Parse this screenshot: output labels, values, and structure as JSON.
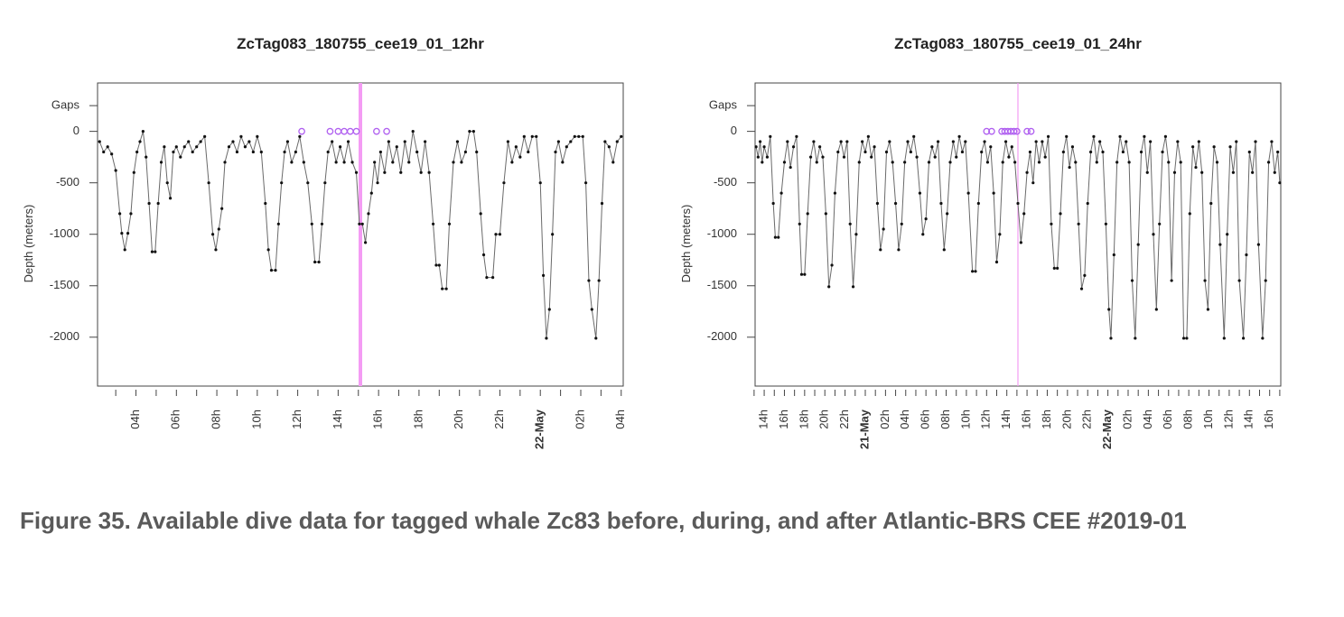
{
  "chart_data": [
    {
      "type": "line",
      "title": "ZcTag083_180755_cee19_01_12hr",
      "ylabel": "Depth (meters)",
      "xlim": [
        26.1,
        52.1
      ],
      "ylim": [
        -2475,
        470
      ],
      "yticks": [
        {
          "value": 250,
          "label": "Gaps"
        },
        0,
        -500,
        -1000,
        -1500,
        -2000
      ],
      "xticks": [
        {
          "value": 28,
          "label": "04h"
        },
        {
          "value": 30,
          "label": "06h"
        },
        {
          "value": 32,
          "label": "08h"
        },
        {
          "value": 34,
          "label": "10h"
        },
        {
          "value": 36,
          "label": "12h"
        },
        {
          "value": 38,
          "label": "14h"
        },
        {
          "value": 40,
          "label": "16h"
        },
        {
          "value": 42,
          "label": "18h"
        },
        {
          "value": 44,
          "label": "20h"
        },
        {
          "value": 46,
          "label": "22h"
        },
        {
          "value": 48,
          "label": "22-May"
        },
        {
          "value": 50,
          "label": "02h"
        },
        {
          "value": 52,
          "label": "04h"
        }
      ],
      "xminorticks": [
        27,
        29,
        31,
        33,
        35,
        37,
        39,
        41,
        43,
        45,
        47,
        49,
        51
      ],
      "vline": {
        "x": 39.1,
        "color": "#f49cf4"
      },
      "series": [
        {
          "color": "#111111",
          "line_color": "#6a6a6a",
          "x": [
            26.2,
            26.4,
            26.6,
            26.8,
            27.0,
            27.2,
            27.3,
            27.45,
            27.6,
            27.75,
            27.9,
            28.05,
            28.2,
            28.35,
            28.5,
            28.65,
            28.8,
            28.95,
            29.1,
            29.25,
            29.4,
            29.55,
            29.7,
            29.85,
            30.0,
            30.2,
            30.4,
            30.6,
            30.8,
            31.0,
            31.2,
            31.4,
            31.6,
            31.8,
            31.95,
            32.1,
            32.25,
            32.4,
            32.6,
            32.8,
            33.0,
            33.2,
            33.4,
            33.6,
            33.8,
            34.0,
            34.2,
            34.4,
            34.55,
            34.7,
            34.9,
            35.05,
            35.2,
            35.35,
            35.5,
            35.7,
            35.9,
            36.1,
            36.3,
            36.5,
            36.7,
            36.85,
            37.05,
            37.2,
            37.35,
            37.5,
            37.7,
            37.9,
            38.1,
            38.3,
            38.5,
            38.7,
            38.9,
            39.05,
            39.2,
            39.35,
            39.5,
            39.65,
            39.8,
            39.95,
            40.1,
            40.3,
            40.5,
            40.7,
            40.9,
            41.1,
            41.3,
            41.5,
            41.7,
            41.9,
            42.1,
            42.3,
            42.5,
            42.7,
            42.85,
            43.0,
            43.15,
            43.35,
            43.5,
            43.7,
            43.9,
            44.1,
            44.3,
            44.5,
            44.7,
            44.85,
            45.05,
            45.2,
            45.35,
            45.65,
            45.8,
            46.0,
            46.2,
            46.4,
            46.6,
            46.8,
            47.0,
            47.2,
            47.4,
            47.6,
            47.8,
            48.0,
            48.15,
            48.3,
            48.45,
            48.6,
            48.75,
            48.9,
            49.1,
            49.3,
            49.5,
            49.7,
            49.9,
            50.1,
            50.25,
            50.4,
            50.55,
            50.75,
            50.9,
            51.05,
            51.2,
            51.4,
            51.6,
            51.8,
            52.0
          ],
          "values": [
            -100,
            -200,
            -150,
            -220,
            -380,
            -800,
            -990,
            -1150,
            -990,
            -800,
            -400,
            -200,
            -100,
            0,
            -250,
            -700,
            -1170,
            -1170,
            -700,
            -300,
            -150,
            -500,
            -650,
            -200,
            -150,
            -250,
            -150,
            -100,
            -200,
            -150,
            -100,
            -50,
            -500,
            -1000,
            -1150,
            -950,
            -750,
            -300,
            -150,
            -100,
            -200,
            -50,
            -150,
            -100,
            -200,
            -50,
            -200,
            -700,
            -1150,
            -1350,
            -1350,
            -900,
            -500,
            -200,
            -100,
            -300,
            -200,
            -50,
            -300,
            -500,
            -900,
            -1270,
            -1270,
            -900,
            -500,
            -200,
            -100,
            -300,
            -150,
            -300,
            -100,
            -300,
            -400,
            -900,
            -900,
            -1080,
            -800,
            -600,
            -300,
            -500,
            -200,
            -400,
            -100,
            -300,
            -150,
            -400,
            -100,
            -300,
            0,
            -200,
            -400,
            -100,
            -400,
            -900,
            -1300,
            -1300,
            -1530,
            -1530,
            -900,
            -300,
            -100,
            -300,
            -200,
            0,
            0,
            -200,
            -800,
            -1200,
            -1420,
            -1420,
            -1000,
            -1000,
            -500,
            -100,
            -300,
            -150,
            -250,
            -50,
            -200,
            -50,
            -50,
            -500,
            -1400,
            -2010,
            -1730,
            -1000,
            -200,
            -100,
            -300,
            -150,
            -100,
            -50,
            -50,
            -50,
            -500,
            -1450,
            -1730,
            -2010,
            -1450,
            -700,
            -100,
            -150,
            -300,
            -100,
            -50
          ]
        },
        {
          "color": "#b060f0",
          "marker": "open",
          "x": [
            36.2,
            37.6,
            38.0,
            38.3,
            38.6,
            38.9,
            39.9,
            40.4
          ],
          "values": [
            0,
            0,
            0,
            0,
            0,
            0,
            0,
            0
          ]
        }
      ]
    },
    {
      "type": "line",
      "title": "ZcTag083_180755_cee19_01_24hr",
      "ylabel": "Depth (meters)",
      "xlim": [
        13.1,
        65.1
      ],
      "ylim": [
        -2475,
        470
      ],
      "yticks": [
        {
          "value": 250,
          "label": "Gaps"
        },
        0,
        -500,
        -1000,
        -1500,
        -2000
      ],
      "xticks": [
        {
          "value": 14,
          "label": "14h"
        },
        {
          "value": 16,
          "label": "16h"
        },
        {
          "value": 18,
          "label": "18h"
        },
        {
          "value": 20,
          "label": "20h"
        },
        {
          "value": 22,
          "label": "22h"
        },
        {
          "value": 24,
          "label": "21-May"
        },
        {
          "value": 26,
          "label": "02h"
        },
        {
          "value": 28,
          "label": "04h"
        },
        {
          "value": 30,
          "label": "06h"
        },
        {
          "value": 32,
          "label": "08h"
        },
        {
          "value": 34,
          "label": "10h"
        },
        {
          "value": 36,
          "label": "12h"
        },
        {
          "value": 38,
          "label": "14h"
        },
        {
          "value": 40,
          "label": "16h"
        },
        {
          "value": 42,
          "label": "18h"
        },
        {
          "value": 44,
          "label": "20h"
        },
        {
          "value": 46,
          "label": "22h"
        },
        {
          "value": 48,
          "label": "22-May"
        },
        {
          "value": 50,
          "label": "02h"
        },
        {
          "value": 52,
          "label": "04h"
        },
        {
          "value": 54,
          "label": "06h"
        },
        {
          "value": 56,
          "label": "08h"
        },
        {
          "value": 58,
          "label": "10h"
        },
        {
          "value": 60,
          "label": "12h"
        },
        {
          "value": 62,
          "label": "14h"
        },
        {
          "value": 64,
          "label": "16h"
        }
      ],
      "xminorticks": [
        13,
        15,
        17,
        19,
        21,
        23,
        25,
        27,
        29,
        31,
        33,
        35,
        37,
        39,
        41,
        43,
        45,
        47,
        49,
        51,
        53,
        55,
        57,
        59,
        61,
        63,
        65
      ],
      "vline": {
        "x": 39.1,
        "color": "#f49cf4"
      },
      "series": [
        {
          "color": "#111111",
          "line_color": "#6a6a6a",
          "x": [
            13.2,
            13.4,
            13.6,
            13.8,
            14.0,
            14.3,
            14.6,
            14.9,
            15.1,
            15.4,
            15.7,
            16.0,
            16.3,
            16.6,
            16.9,
            17.2,
            17.5,
            17.7,
            18.0,
            18.3,
            18.6,
            18.9,
            19.2,
            19.5,
            19.8,
            20.1,
            20.4,
            20.7,
            21.0,
            21.3,
            21.6,
            21.9,
            22.2,
            22.5,
            22.8,
            23.1,
            23.4,
            23.7,
            24.0,
            24.3,
            24.6,
            24.9,
            25.2,
            25.5,
            25.8,
            26.1,
            26.4,
            26.7,
            27.0,
            27.3,
            27.6,
            27.9,
            28.2,
            28.5,
            28.8,
            29.1,
            29.4,
            29.7,
            30.0,
            30.3,
            30.6,
            30.9,
            31.2,
            31.5,
            31.8,
            32.1,
            32.4,
            32.7,
            33.0,
            33.3,
            33.6,
            33.9,
            34.2,
            34.6,
            34.9,
            35.2,
            35.5,
            35.8,
            36.1,
            36.4,
            36.7,
            37.0,
            37.3,
            37.6,
            37.9,
            38.2,
            38.5,
            38.8,
            39.1,
            39.4,
            39.7,
            40.0,
            40.3,
            40.6,
            40.9,
            41.2,
            41.5,
            41.8,
            42.1,
            42.4,
            42.7,
            43.0,
            43.3,
            43.6,
            43.9,
            44.2,
            44.5,
            44.8,
            45.1,
            45.4,
            45.7,
            46.0,
            46.3,
            46.6,
            46.9,
            47.2,
            47.5,
            47.8,
            48.1,
            48.3,
            48.6,
            48.9,
            49.2,
            49.5,
            49.8,
            50.1,
            50.4,
            50.7,
            51.0,
            51.3,
            51.6,
            51.9,
            52.2,
            52.5,
            52.8,
            53.1,
            53.4,
            53.7,
            54.0,
            54.3,
            54.6,
            54.9,
            55.2,
            55.5,
            55.8,
            56.1,
            56.4,
            56.7,
            57.0,
            57.3,
            57.6,
            57.9,
            58.2,
            58.5,
            58.8,
            59.1,
            59.5,
            59.8,
            60.1,
            60.4,
            60.7,
            61.0,
            61.4,
            61.7,
            62.0,
            62.3,
            62.6,
            62.9,
            63.3,
            63.6,
            63.9,
            64.2,
            64.5,
            64.8,
            65.0
          ],
          "values": [
            -150,
            -250,
            -100,
            -300,
            -150,
            -250,
            -50,
            -700,
            -1030,
            -1030,
            -600,
            -300,
            -100,
            -350,
            -150,
            -50,
            -900,
            -1390,
            -1390,
            -800,
            -250,
            -100,
            -300,
            -150,
            -250,
            -800,
            -1510,
            -1300,
            -600,
            -200,
            -100,
            -250,
            -100,
            -900,
            -1510,
            -1000,
            -300,
            -100,
            -200,
            -50,
            -250,
            -150,
            -700,
            -1150,
            -950,
            -200,
            -100,
            -300,
            -700,
            -1150,
            -900,
            -300,
            -100,
            -200,
            -50,
            -250,
            -600,
            -1000,
            -850,
            -300,
            -150,
            -250,
            -100,
            -700,
            -1150,
            -800,
            -300,
            -100,
            -250,
            -50,
            -200,
            -100,
            -600,
            -1360,
            -1360,
            -700,
            -200,
            -100,
            -300,
            -150,
            -600,
            -1270,
            -1000,
            -300,
            -100,
            -250,
            -150,
            -300,
            -700,
            -1080,
            -800,
            -400,
            -200,
            -500,
            -100,
            -300,
            -100,
            -250,
            -50,
            -900,
            -1330,
            -1330,
            -800,
            -200,
            -50,
            -350,
            -150,
            -300,
            -900,
            -1530,
            -1400,
            -700,
            -200,
            -50,
            -300,
            -100,
            -200,
            -900,
            -1730,
            -2010,
            -1200,
            -300,
            -50,
            -200,
            -100,
            -300,
            -1450,
            -2010,
            -1100,
            -200,
            -50,
            -400,
            -100,
            -1000,
            -1730,
            -900,
            -200,
            -50,
            -300,
            -1450,
            -400,
            -100,
            -300,
            -2010,
            -2010,
            -800,
            -150,
            -350,
            -100,
            -400,
            -1450,
            -1730,
            -700,
            -150,
            -300,
            -1100,
            -2010,
            -1000,
            -150,
            -400,
            -100,
            -1450,
            -2010,
            -1200,
            -200,
            -400,
            -100,
            -1100,
            -2010,
            -1450,
            -300,
            -100,
            -400,
            -200,
            -500
          ]
        },
        {
          "color": "#b060f0",
          "marker": "open",
          "x": [
            36.0,
            36.5,
            37.5,
            37.8,
            38.1,
            38.4,
            38.7,
            39.0,
            40.0,
            40.4
          ],
          "values": [
            0,
            0,
            0,
            0,
            0,
            0,
            0,
            0,
            0,
            0
          ]
        }
      ]
    }
  ],
  "caption": "Figure 35. Available dive data for tagged whale Zc83 before, during, and after Atlantic-BRS CEE #2019-01"
}
